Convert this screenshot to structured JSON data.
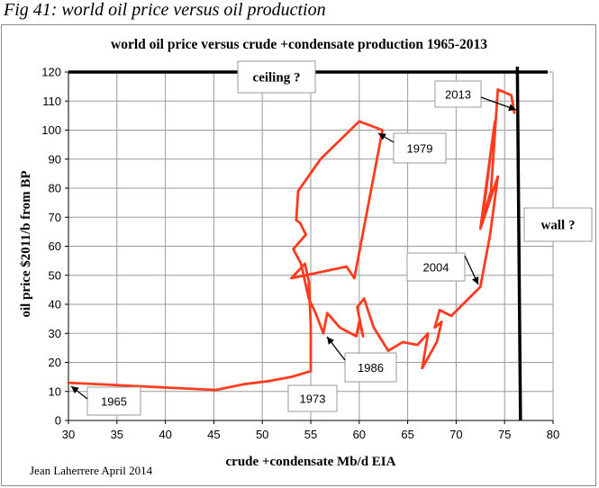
{
  "figure_caption": "Fig 41: world oil price versus oil production",
  "chart_data": {
    "type": "line",
    "title": "world oil price versus crude +condensate production 1965-2013",
    "xlabel": "crude +condensate Mb/d EIA",
    "ylabel": "oil price $2011/b from BP",
    "xlim": [
      30,
      80
    ],
    "ylim": [
      0,
      120
    ],
    "x_ticks": [
      "30",
      "35",
      "40",
      "45",
      "50",
      "55",
      "60",
      "65",
      "70",
      "75",
      "80"
    ],
    "y_ticks": [
      "0",
      "10",
      "20",
      "30",
      "40",
      "50",
      "60",
      "70",
      "80",
      "90",
      "100",
      "110",
      "120"
    ],
    "grid": true,
    "colors": {
      "series": "#ff3b1f",
      "grid": "#9a9a9a",
      "limit_lines": "#000000"
    },
    "series": [
      {
        "x": [
          30.0,
          45.2,
          48.1,
          50.5,
          53.0,
          55.0,
          55.0,
          54.8,
          54.4,
          53.0,
          58.7,
          59.5,
          62.4,
          60.0,
          56.0,
          53.7,
          53.5,
          53.9,
          54.5,
          53.2,
          54.0,
          54.8,
          55.5,
          56.3,
          56.7,
          58.0,
          59.7,
          60.0,
          60.4,
          59.8,
          60.5,
          61.5,
          63.0,
          64.5,
          66.0,
          67.1,
          66.5,
          68.0,
          68.5,
          67.8,
          68.3,
          69.5,
          72.5,
          73.5,
          74.3,
          72.5,
          74.0,
          72.7,
          73.6,
          74.3,
          75.7,
          76.0
        ],
        "y": [
          13,
          10.5,
          12.5,
          13.5,
          15,
          17,
          33,
          48,
          54,
          49,
          53,
          49,
          100,
          103,
          90,
          79,
          69,
          68,
          64,
          59,
          54,
          42,
          37,
          30,
          37,
          32,
          29,
          34,
          29,
          39,
          42,
          32,
          24,
          27,
          26,
          30,
          18,
          27,
          34,
          32,
          38,
          36,
          46,
          64,
          84,
          66,
          103,
          69,
          79,
          114,
          112,
          106
        ]
      }
    ],
    "annotations": [
      {
        "text": "ceiling ?"
      },
      {
        "text": "wall ?"
      },
      {
        "text": "1965"
      },
      {
        "text": "1973"
      },
      {
        "text": "1979"
      },
      {
        "text": "1986"
      },
      {
        "text": "2004"
      },
      {
        "text": "2013"
      }
    ],
    "limit_lines": {
      "ceiling_y": 120,
      "wall_x": 76.5
    },
    "credit": "Jean Laherrere April 2014"
  }
}
